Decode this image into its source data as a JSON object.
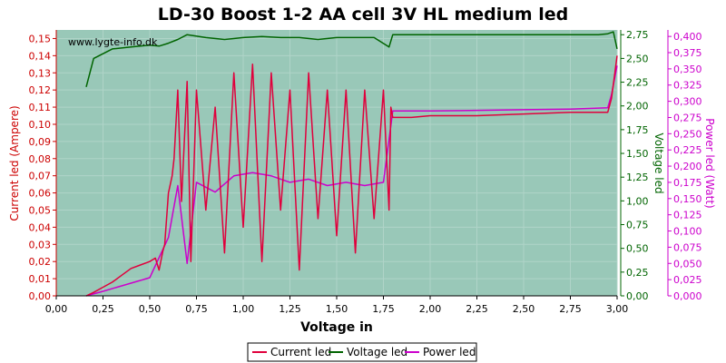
{
  "chart_data": {
    "type": "line",
    "title": "LD-30 Boost 1-2 AA cell 3V HL medium led",
    "watermark": "www.lygte-info.dk",
    "xlabel": "Voltage in",
    "ylabel_left": "Current led (Ampere)",
    "ylabel_right1": "Voltage led",
    "ylabel_right2": "Power led (Watt)",
    "xlim": [
      0,
      3
    ],
    "ylim_left": [
      0,
      0.155
    ],
    "ylim_right1": [
      0,
      2.8
    ],
    "ylim_right2": [
      0,
      0.41
    ],
    "x_ticks": [
      "0,00",
      "0,25",
      "0,50",
      "0,75",
      "1,00",
      "1,25",
      "1,50",
      "1,75",
      "2,00",
      "2,25",
      "2,50",
      "2,75",
      "3,00"
    ],
    "y_left_ticks": [
      "0,00",
      "0,01",
      "0,02",
      "0,03",
      "0,04",
      "0,05",
      "0,06",
      "0,07",
      "0,08",
      "0,09",
      "0,10",
      "0,11",
      "0,12",
      "0,13",
      "0,14",
      "0,15"
    ],
    "y_right1_ticks": [
      "0,00",
      "0,25",
      "0,50",
      "0,75",
      "1,00",
      "1,25",
      "1,50",
      "1,75",
      "2,00",
      "2,25",
      "2,50",
      "2,75"
    ],
    "y_right2_ticks": [
      "0,000",
      "0,025",
      "0,050",
      "0,075",
      "0,100",
      "0,125",
      "0,150",
      "0,175",
      "0,200",
      "0,225",
      "0,250",
      "0,275",
      "0,300",
      "0,325",
      "0,350",
      "0,375",
      "0,400"
    ],
    "colors": {
      "current": "#e0003c",
      "current_line": "#d40000",
      "voltage": "#006400",
      "power": "#cc00cc",
      "plot_bg": "#99c8b8",
      "grid": "#b0d4c8",
      "left_axis": "#cc0000",
      "right1_axis": "#006400",
      "right2_axis": "#cc00cc"
    },
    "legend": {
      "position": "bottom-center",
      "items": [
        "Current led",
        "Voltage led",
        "Power led"
      ]
    },
    "grid": true,
    "series": [
      {
        "name": "Current led",
        "axis": "left",
        "x": [
          0.16,
          0.2,
          0.25,
          0.3,
          0.35,
          0.4,
          0.45,
          0.5,
          0.53,
          0.55,
          0.57,
          0.58,
          0.6,
          0.62,
          0.63,
          0.65,
          0.67,
          0.7,
          0.72,
          0.75,
          0.8,
          0.85,
          0.9,
          0.95,
          1.0,
          1.05,
          1.1,
          1.15,
          1.2,
          1.25,
          1.3,
          1.35,
          1.4,
          1.45,
          1.5,
          1.55,
          1.6,
          1.65,
          1.7,
          1.75,
          1.78,
          1.79,
          1.8,
          1.85,
          1.9,
          2.0,
          2.25,
          2.5,
          2.75,
          2.95,
          2.97,
          3.0
        ],
        "y": [
          0,
          0.002,
          0.005,
          0.008,
          0.012,
          0.016,
          0.018,
          0.02,
          0.022,
          0.015,
          0.026,
          0.03,
          0.06,
          0.07,
          0.08,
          0.12,
          0.055,
          0.125,
          0.02,
          0.12,
          0.05,
          0.11,
          0.025,
          0.13,
          0.04,
          0.135,
          0.02,
          0.13,
          0.05,
          0.12,
          0.015,
          0.13,
          0.045,
          0.12,
          0.035,
          0.12,
          0.025,
          0.12,
          0.045,
          0.12,
          0.05,
          0.11,
          0.104,
          0.104,
          0.104,
          0.105,
          0.105,
          0.106,
          0.107,
          0.107,
          0.115,
          0.14
        ]
      },
      {
        "name": "Voltage led",
        "axis": "right1",
        "x": [
          0.16,
          0.2,
          0.25,
          0.3,
          0.4,
          0.5,
          0.55,
          0.6,
          0.65,
          0.7,
          0.8,
          0.9,
          1.0,
          1.1,
          1.2,
          1.3,
          1.4,
          1.5,
          1.6,
          1.7,
          1.78,
          1.8,
          2.0,
          2.5,
          2.9,
          2.95,
          2.98,
          3.0
        ],
        "y": [
          2.2,
          2.5,
          2.55,
          2.6,
          2.62,
          2.64,
          2.63,
          2.66,
          2.7,
          2.75,
          2.72,
          2.7,
          2.72,
          2.73,
          2.72,
          2.72,
          2.7,
          2.72,
          2.72,
          2.72,
          2.62,
          2.75,
          2.75,
          2.75,
          2.75,
          2.76,
          2.78,
          2.6
        ]
      },
      {
        "name": "Power led",
        "axis": "right2",
        "x": [
          0.16,
          0.25,
          0.5,
          0.6,
          0.65,
          0.7,
          0.75,
          0.85,
          0.95,
          1.05,
          1.15,
          1.25,
          1.35,
          1.45,
          1.55,
          1.65,
          1.75,
          1.8,
          2.0,
          2.25,
          2.5,
          2.75,
          2.95,
          2.97,
          3.0
        ],
        "y": [
          0,
          0.007,
          0.028,
          0.09,
          0.17,
          0.05,
          0.175,
          0.16,
          0.185,
          0.19,
          0.185,
          0.175,
          0.18,
          0.17,
          0.175,
          0.17,
          0.175,
          0.285,
          0.285,
          0.286,
          0.287,
          0.288,
          0.29,
          0.31,
          0.355
        ]
      }
    ]
  }
}
